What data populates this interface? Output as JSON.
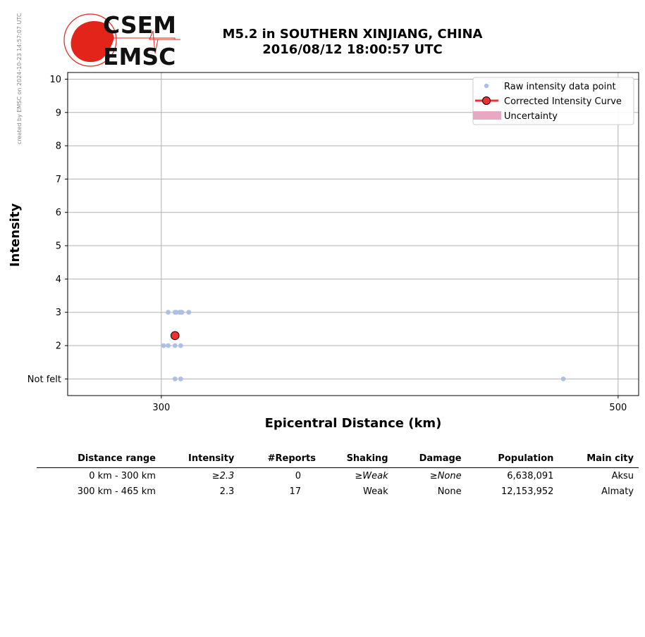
{
  "watermark": "created by EMSC on 2024-10-23 14:57:07 UTC",
  "logo": {
    "top": "CSEM",
    "bottom": "EMSC",
    "color": "#e3241b"
  },
  "title_line1": "M5.2 in SOUTHERN XINJIANG, CHINA",
  "title_line2": "2016/08/12 18:00:57 UTC",
  "chart_data": {
    "type": "scatter",
    "xlabel": "Epicentral Distance (km)",
    "ylabel": "Intensity",
    "xlim": [
      259,
      509
    ],
    "ylim": [
      0.5,
      10.2
    ],
    "x_ticks": [
      300,
      500
    ],
    "x_tick_labels": [
      "300",
      "500"
    ],
    "y_ticks": [
      1,
      2,
      3,
      4,
      5,
      6,
      7,
      8,
      9,
      10
    ],
    "y_tick_labels": [
      "Not felt",
      "2",
      "3",
      "4",
      "5",
      "6",
      "7",
      "8",
      "9",
      "10"
    ],
    "grid": true,
    "legend_position": "top-right",
    "legend": [
      "Raw intensity data point",
      "Corrected Intensity Curve",
      "Uncertainty"
    ],
    "series": [
      {
        "name": "Raw intensity data point",
        "color": "#aebfe6",
        "points": [
          [
            303,
            3
          ],
          [
            306,
            3
          ],
          [
            306.5,
            3
          ],
          [
            308,
            3
          ],
          [
            308.5,
            3
          ],
          [
            309,
            3
          ],
          [
            312,
            3
          ],
          [
            301,
            2
          ],
          [
            303,
            2
          ],
          [
            306,
            2
          ],
          [
            308.5,
            2
          ],
          [
            306,
            1
          ],
          [
            308.5,
            1
          ],
          [
            476,
            1
          ]
        ]
      },
      {
        "name": "Corrected Intensity Curve",
        "color": "#f03030",
        "points": [
          [
            306,
            2.3
          ]
        ]
      },
      {
        "name": "Uncertainty",
        "color": "#e8a8c4",
        "points": []
      }
    ]
  },
  "table": {
    "headers": [
      "Distance range",
      "Intensity",
      "#Reports",
      "Shaking",
      "Damage",
      "Population",
      "Main city"
    ],
    "rows": [
      {
        "distance": "0 km -  300 km",
        "intensity": "≥2.3",
        "reports": "0",
        "shaking": "≥Weak",
        "damage": "≥None",
        "population": "6,638,091",
        "city": "Aksu"
      },
      {
        "distance": "300 km -  465 km",
        "intensity": "2.3",
        "reports": "17",
        "shaking": "Weak",
        "damage": "None",
        "population": "12,153,952",
        "city": "Almaty"
      }
    ]
  }
}
